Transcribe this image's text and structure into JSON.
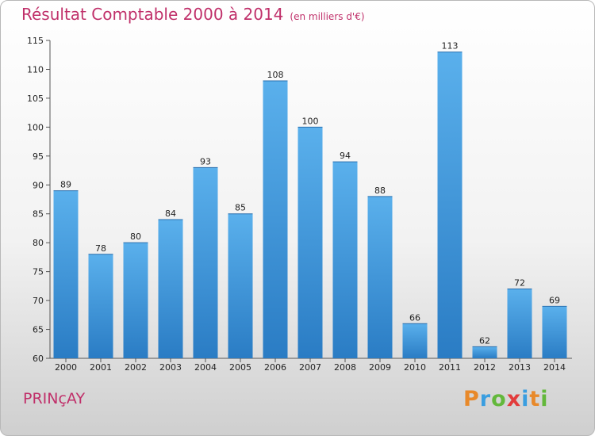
{
  "chart_data": {
    "type": "bar",
    "title": "Résultat Comptable 2000 à 2014",
    "subtitle": "(en milliers d'€)",
    "categories": [
      "2000",
      "2001",
      "2002",
      "2003",
      "2004",
      "2005",
      "2006",
      "2007",
      "2008",
      "2009",
      "2010",
      "2011",
      "2012",
      "2013",
      "2014"
    ],
    "values": [
      89,
      78,
      80,
      84,
      93,
      85,
      108,
      100,
      94,
      88,
      66,
      113,
      62,
      72,
      69
    ],
    "ylim": [
      60,
      115
    ],
    "yticks": [
      60,
      65,
      70,
      75,
      80,
      85,
      90,
      95,
      100,
      105,
      110,
      115
    ],
    "xlabel": "",
    "ylabel": "",
    "grid": false,
    "bar_color": "#3f97dc"
  },
  "footer": {
    "town": "PRINçAY",
    "logo_letters": [
      "P",
      "r",
      "o",
      "x",
      "i",
      "t",
      "i"
    ]
  }
}
